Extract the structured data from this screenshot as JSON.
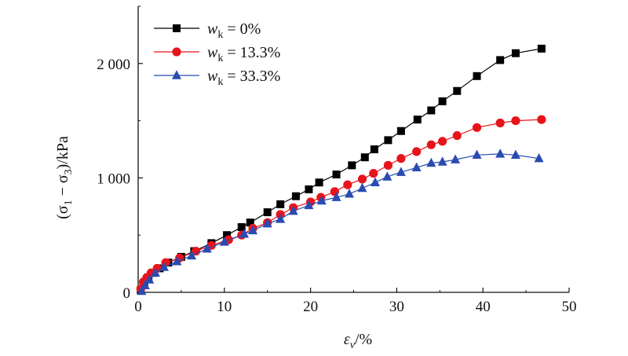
{
  "chart_data": {
    "type": "line",
    "xlabel": {
      "main": "ε",
      "sub": "v",
      "suffix": "/%"
    },
    "ylabel": {
      "prefix": "(σ",
      "sub1": "1",
      "mid": " − σ",
      "sub2": "3",
      "suffix": ")/kPa"
    },
    "xlim": [
      0,
      50
    ],
    "ylim": [
      0,
      2500
    ],
    "xticks": [
      0,
      10,
      20,
      30,
      40,
      50
    ],
    "xtick_labels": [
      "0",
      "10",
      "20",
      "30",
      "40",
      "50"
    ],
    "yticks": [
      0,
      1000,
      2000
    ],
    "ytick_labels": [
      "0",
      "1 000",
      "2 000"
    ],
    "grid": false,
    "legend_position": "top-left",
    "series": [
      {
        "name": "0%",
        "label_var": "w",
        "label_sub": "k",
        "label_eq": " = 0%",
        "color": "#000000",
        "marker": "square",
        "points": [
          [
            0.3,
            20
          ],
          [
            0.7,
            80
          ],
          [
            1.2,
            130
          ],
          [
            1.8,
            170
          ],
          [
            2.5,
            210
          ],
          [
            3.5,
            260
          ],
          [
            5.0,
            310
          ],
          [
            6.5,
            360
          ],
          [
            8.5,
            430
          ],
          [
            10.3,
            500
          ],
          [
            12.0,
            570
          ],
          [
            13.0,
            610
          ],
          [
            15.0,
            700
          ],
          [
            16.5,
            770
          ],
          [
            18.3,
            840
          ],
          [
            19.8,
            900
          ],
          [
            21.0,
            960
          ],
          [
            23.0,
            1030
          ],
          [
            24.8,
            1110
          ],
          [
            26.3,
            1180
          ],
          [
            27.4,
            1250
          ],
          [
            29.0,
            1330
          ],
          [
            30.5,
            1410
          ],
          [
            32.4,
            1510
          ],
          [
            34.0,
            1590
          ],
          [
            35.3,
            1670
          ],
          [
            37.0,
            1760
          ],
          [
            39.3,
            1890
          ],
          [
            42.0,
            2030
          ],
          [
            43.8,
            2090
          ],
          [
            46.8,
            2130
          ]
        ]
      },
      {
        "name": "13.3%",
        "label_var": "w",
        "label_sub": "k",
        "label_eq": " = 13.3%",
        "color": "#e8141c",
        "marker": "circle",
        "points": [
          [
            0.3,
            30
          ],
          [
            0.6,
            90
          ],
          [
            1.0,
            130
          ],
          [
            1.5,
            170
          ],
          [
            2.2,
            210
          ],
          [
            3.2,
            260
          ],
          [
            4.8,
            300
          ],
          [
            6.7,
            360
          ],
          [
            8.5,
            410
          ],
          [
            10.5,
            460
          ],
          [
            12.0,
            500
          ],
          [
            13.3,
            560
          ],
          [
            15.0,
            610
          ],
          [
            16.5,
            680
          ],
          [
            18.0,
            740
          ],
          [
            20.0,
            790
          ],
          [
            21.2,
            830
          ],
          [
            22.8,
            880
          ],
          [
            24.3,
            940
          ],
          [
            26.0,
            990
          ],
          [
            27.3,
            1040
          ],
          [
            29.0,
            1110
          ],
          [
            30.5,
            1170
          ],
          [
            32.3,
            1230
          ],
          [
            34.0,
            1290
          ],
          [
            35.3,
            1320
          ],
          [
            37.0,
            1370
          ],
          [
            39.3,
            1440
          ],
          [
            42.0,
            1480
          ],
          [
            43.8,
            1500
          ],
          [
            46.8,
            1510
          ]
        ]
      },
      {
        "name": "33.3%",
        "label_var": "w",
        "label_sub": "k",
        "label_eq": " = 33.3%",
        "color": "#2a4bb0",
        "marker": "triangle",
        "points": [
          [
            0.4,
            10
          ],
          [
            0.8,
            60
          ],
          [
            1.3,
            110
          ],
          [
            2.0,
            170
          ],
          [
            3.0,
            220
          ],
          [
            4.5,
            270
          ],
          [
            6.2,
            320
          ],
          [
            8.0,
            380
          ],
          [
            10.0,
            440
          ],
          [
            12.3,
            510
          ],
          [
            13.3,
            540
          ],
          [
            15.0,
            600
          ],
          [
            16.5,
            640
          ],
          [
            18.0,
            710
          ],
          [
            19.8,
            760
          ],
          [
            21.3,
            800
          ],
          [
            23.0,
            830
          ],
          [
            24.5,
            860
          ],
          [
            26.0,
            910
          ],
          [
            27.5,
            960
          ],
          [
            28.9,
            1010
          ],
          [
            30.5,
            1050
          ],
          [
            32.3,
            1090
          ],
          [
            34.0,
            1130
          ],
          [
            35.3,
            1140
          ],
          [
            36.8,
            1160
          ],
          [
            39.3,
            1200
          ],
          [
            42.0,
            1210
          ],
          [
            43.8,
            1200
          ],
          [
            46.5,
            1170
          ]
        ]
      }
    ]
  }
}
